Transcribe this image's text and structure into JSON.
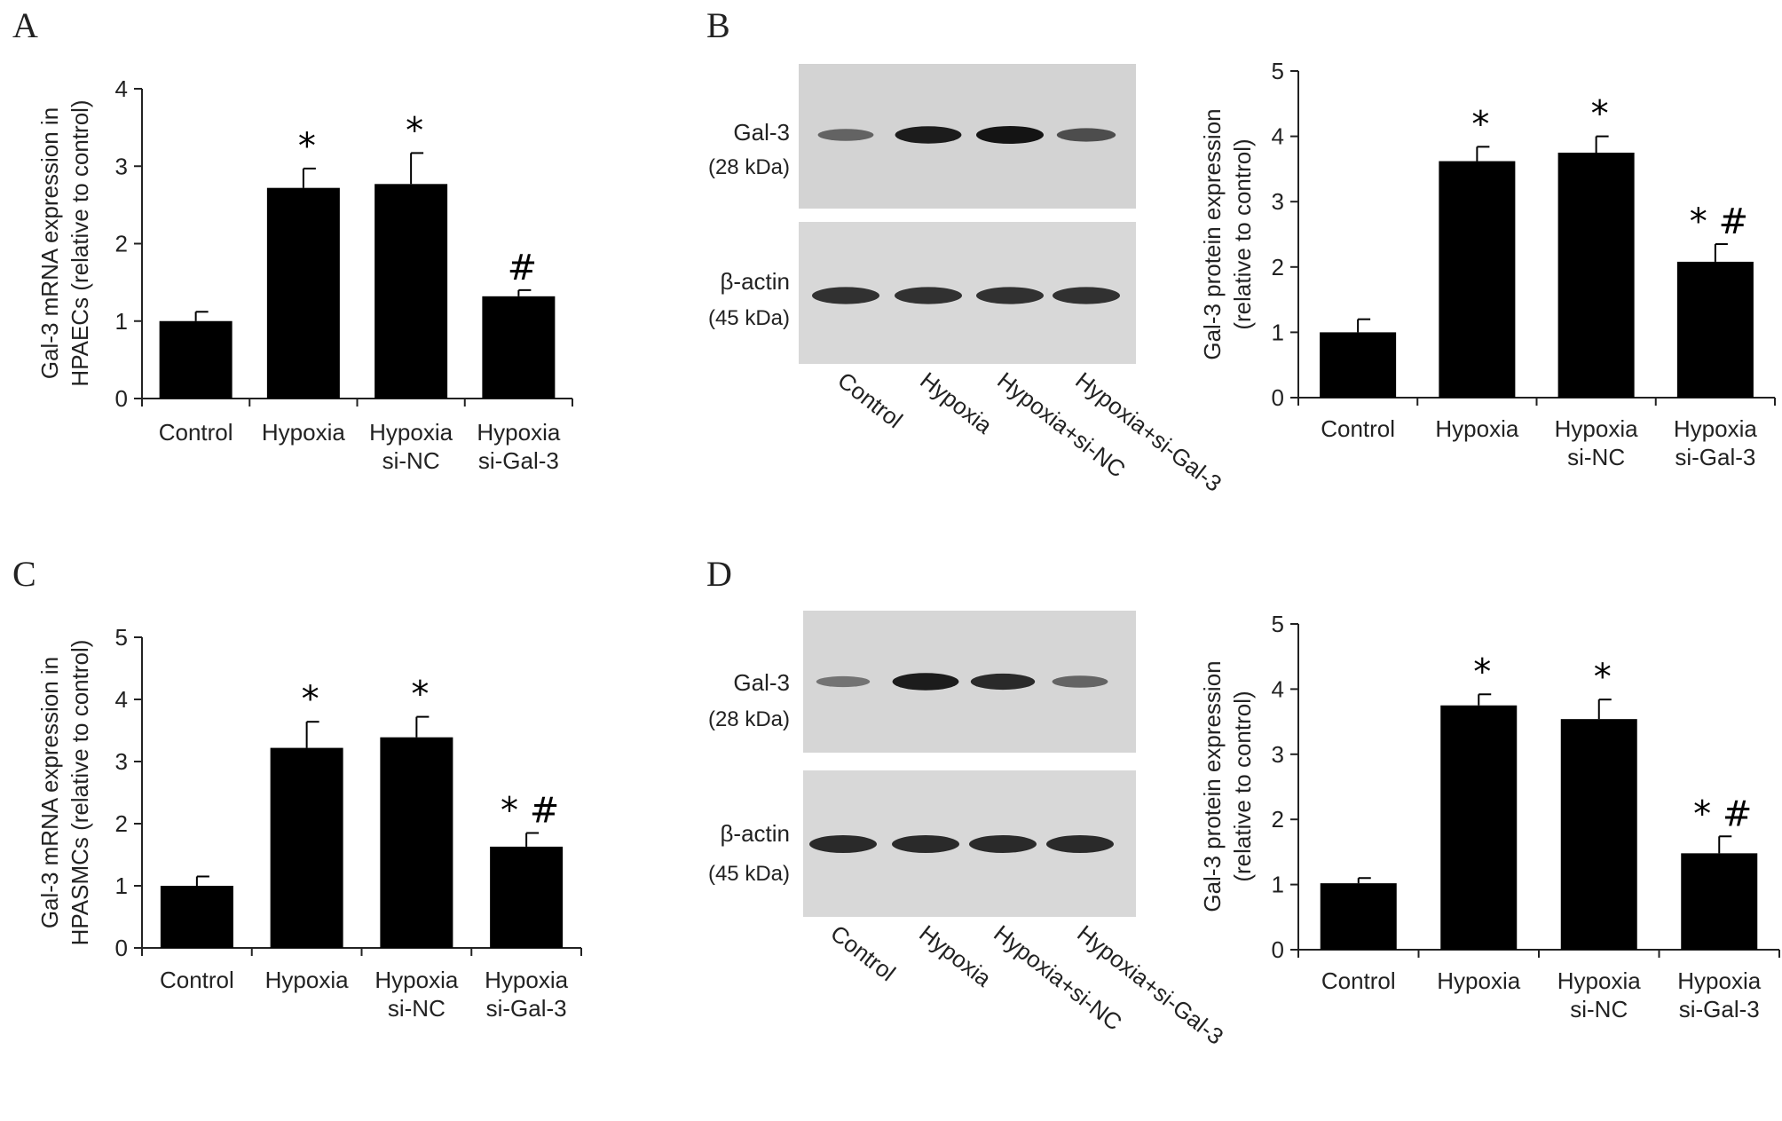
{
  "panels": {
    "A": "A",
    "B": "B",
    "C": "C",
    "D": "D"
  },
  "blot_labels": {
    "target_name": "Gal-3",
    "target_mw": "(28 kDa)",
    "loading_name": "β-actin",
    "loading_mw": "(45 kDa)",
    "lanes": [
      "Control",
      "Hypoxia",
      "Hypoxia+si-NC",
      "Hypoxia+si-Gal-3"
    ]
  },
  "colors": {
    "bar": "#000000",
    "axis": "#222222",
    "blot_background": "#d3d3d3",
    "band": "#141414"
  },
  "blots": [
    {
      "panel": "B",
      "target_band_intensity": [
        0.45,
        0.95,
        1.0,
        0.6
      ],
      "loading_band_intensity": [
        0.8,
        0.8,
        0.8,
        0.8
      ]
    },
    {
      "panel": "D",
      "target_band_intensity": [
        0.35,
        0.95,
        0.85,
        0.45
      ],
      "loading_band_intensity": [
        0.85,
        0.85,
        0.85,
        0.85
      ]
    }
  ],
  "chart_data": [
    {
      "panel": "A",
      "type": "bar",
      "categories": [
        "Control",
        "Hypoxia",
        "Hypoxia\nsi-NC",
        "Hypoxia\nsi-Gal-3"
      ],
      "values": [
        1.0,
        2.72,
        2.77,
        1.32
      ],
      "errors": [
        0.12,
        0.25,
        0.4,
        0.08
      ],
      "annotations": [
        "",
        "*",
        "*",
        "#"
      ],
      "ylabel": "Gal-3 mRNA expression in\nHPAECs (relative to control)",
      "ylim": [
        0,
        4
      ],
      "yticks": [
        0,
        1,
        2,
        3,
        4
      ],
      "grid": false
    },
    {
      "panel": "B",
      "type": "bar",
      "categories": [
        "Control",
        "Hypoxia",
        "Hypoxia\nsi-NC",
        "Hypoxia\nsi-Gal-3"
      ],
      "values": [
        1.0,
        3.62,
        3.75,
        2.08
      ],
      "errors": [
        0.2,
        0.22,
        0.25,
        0.27
      ],
      "annotations": [
        "",
        "*",
        "*",
        "* #"
      ],
      "ylabel": "Gal-3 protein expression\n(relative to control)",
      "ylim": [
        0,
        5
      ],
      "yticks": [
        0,
        1,
        2,
        3,
        4,
        5
      ],
      "grid": false
    },
    {
      "panel": "C",
      "type": "bar",
      "categories": [
        "Control",
        "Hypoxia",
        "Hypoxia\nsi-NC",
        "Hypoxia\nsi-Gal-3"
      ],
      "values": [
        1.0,
        3.22,
        3.39,
        1.63
      ],
      "errors": [
        0.15,
        0.42,
        0.33,
        0.22
      ],
      "annotations": [
        "",
        "*",
        "*",
        "* #"
      ],
      "ylabel": "Gal-3 mRNA expression in\nHPASMCs (relative to control)",
      "ylim": [
        0,
        5
      ],
      "yticks": [
        0,
        1,
        2,
        3,
        4,
        5
      ],
      "grid": false
    },
    {
      "panel": "D",
      "type": "bar",
      "categories": [
        "Control",
        "Hypoxia",
        "Hypoxia\nsi-NC",
        "Hypoxia\nsi-Gal-3"
      ],
      "values": [
        1.02,
        3.75,
        3.54,
        1.48
      ],
      "errors": [
        0.08,
        0.17,
        0.3,
        0.26
      ],
      "annotations": [
        "",
        "*",
        "*",
        "* #"
      ],
      "ylabel": "Gal-3 protein expression\n(relative to control)",
      "ylim": [
        0,
        5
      ],
      "yticks": [
        0,
        1,
        2,
        3,
        4,
        5
      ],
      "grid": false
    }
  ]
}
